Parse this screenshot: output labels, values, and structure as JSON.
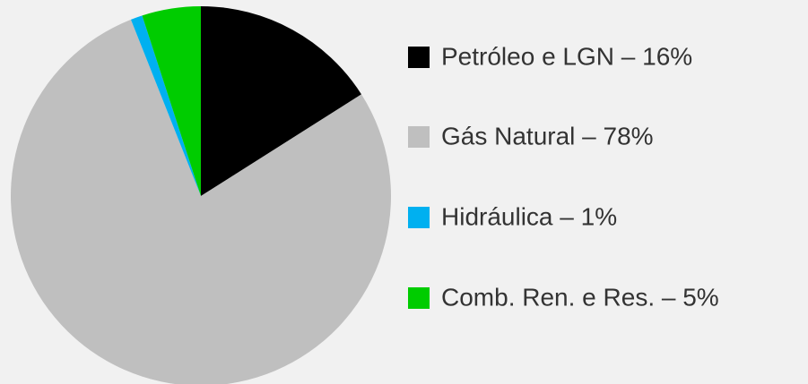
{
  "chart_data": {
    "type": "pie",
    "categories": [
      "Petróleo e LGN – 16%",
      "Gás Natural – 78%",
      "Hidráulica – 1%",
      "Comb. Ren. e Res. – 5%"
    ],
    "values": [
      16,
      78,
      1,
      5
    ],
    "colors": [
      "#000000",
      "#bfbfbf",
      "#00b0f0",
      "#00cc00"
    ],
    "legend": "right"
  }
}
